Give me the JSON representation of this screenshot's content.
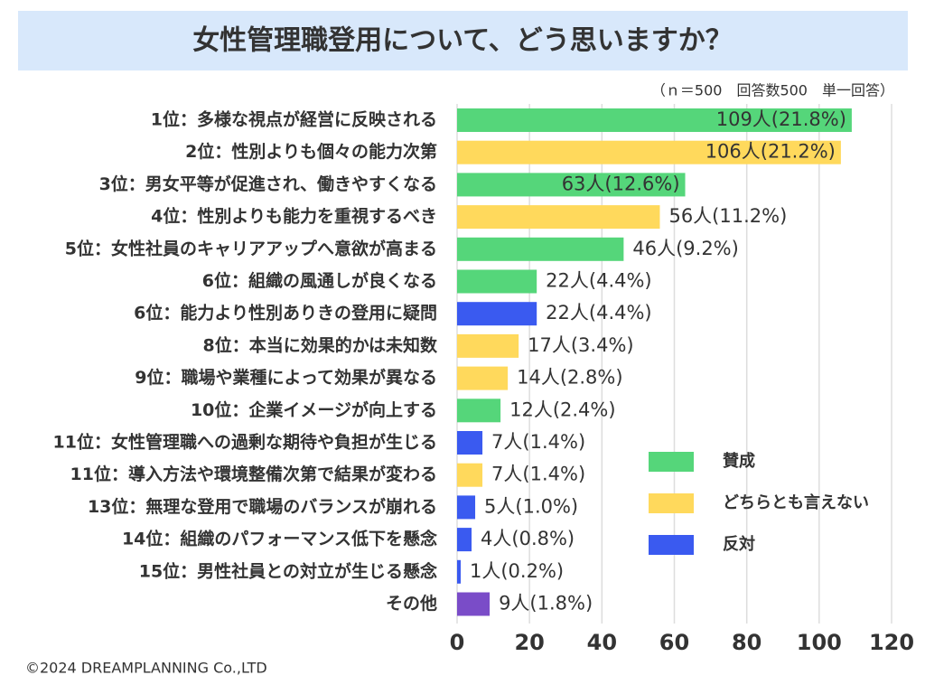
{
  "chart_data": {
    "type": "bar",
    "orientation": "horizontal",
    "title": "女性管理職登用について、どう思いますか？",
    "subtitle": "（ｎ＝500　回答数500　単一回答）",
    "footer": "©2024 DREAMPLANNING Co.,LTD",
    "categories": [
      "1位：多様な視点が経営に反映される",
      "2位：性別よりも個々の能力次第",
      "3位：男女平等が促進され、働きやすくなる",
      "4位：性別よりも能力を重視するべき",
      "5位：女性社員のキャリアアップへ意欲が高まる",
      "6位：組織の風通しが良くなる",
      "6位：能力より性別ありきの登用に疑問",
      "8位：本当に効果的かは未知数",
      "9位：職場や業種によって効果が異なる",
      "10位：企業イメージが向上する",
      "11位：女性管理職への過剰な期待や負担が生じる",
      "11位：導入方法や環境整備次第で結果が変わる",
      "13位：無理な登用で職場のバランスが崩れる",
      "14位：組織のパフォーマンス低下を懸念",
      "15位：男性社員との対立が生じる懸念",
      "その他"
    ],
    "values": [
      109,
      106,
      63,
      56,
      46,
      22,
      22,
      17,
      14,
      12,
      7,
      7,
      5,
      4,
      1,
      9
    ],
    "value_labels": [
      "109人(21.8%)",
      "106人(21.2%)",
      "63人(12.6%)",
      "56人(11.2%)",
      "46人(9.2%)",
      "22人(4.4%)",
      "22人(4.4%)",
      "17人(3.4%)",
      "14人(2.8%)",
      "12人(2.4%)",
      "7人(1.4%)",
      "7人(1.4%)",
      "5人(1.0%)",
      "4人(0.8%)",
      "1人(0.2%)",
      "9人(1.8%)"
    ],
    "colors": [
      "#55d67a",
      "#ffd95c",
      "#55d67a",
      "#ffd95c",
      "#55d67a",
      "#55d67a",
      "#3a5af0",
      "#ffd95c",
      "#ffd95c",
      "#55d67a",
      "#3a5af0",
      "#ffd95c",
      "#3a5af0",
      "#3a5af0",
      "#3a5af0",
      "#7a4cc8"
    ],
    "legend": [
      {
        "name": "賛成",
        "color": "#55d67a"
      },
      {
        "name": "どちらとも言えない",
        "color": "#ffd95c"
      },
      {
        "name": "反対",
        "color": "#3a5af0"
      }
    ],
    "xlim": [
      0,
      120
    ],
    "xticks": [
      0,
      20,
      40,
      60,
      80,
      100,
      120
    ],
    "grid": true
  }
}
